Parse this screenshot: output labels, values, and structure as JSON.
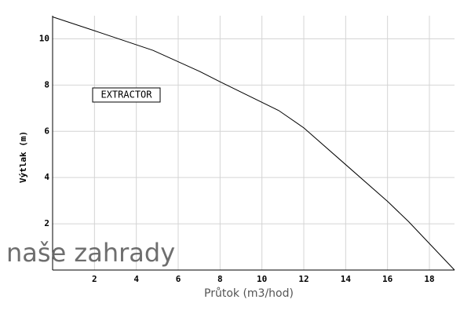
{
  "chart_data": {
    "type": "line",
    "annotation": "EXTRACTOR",
    "watermark": "naše zahrady",
    "x_label": "Průtok (m3/hod)",
    "y_label": "Výtlak (m)",
    "x": [
      0,
      2,
      4.8,
      7,
      8,
      10.8,
      12,
      14,
      16,
      17,
      19.2
    ],
    "series": [
      {
        "color": "#000000",
        "values": [
          10.95,
          10.35,
          9.5,
          8.6,
          8.14,
          6.9,
          6.15,
          4.56,
          2.97,
          2.1,
          0
        ]
      }
    ],
    "xlim": [
      0,
      19.2
    ],
    "ylim": [
      0,
      11
    ],
    "xticks": [
      2,
      4,
      6,
      8,
      10,
      12,
      14,
      16,
      18
    ],
    "yticks": [
      2,
      4,
      6,
      8,
      10
    ],
    "grid": true
  }
}
